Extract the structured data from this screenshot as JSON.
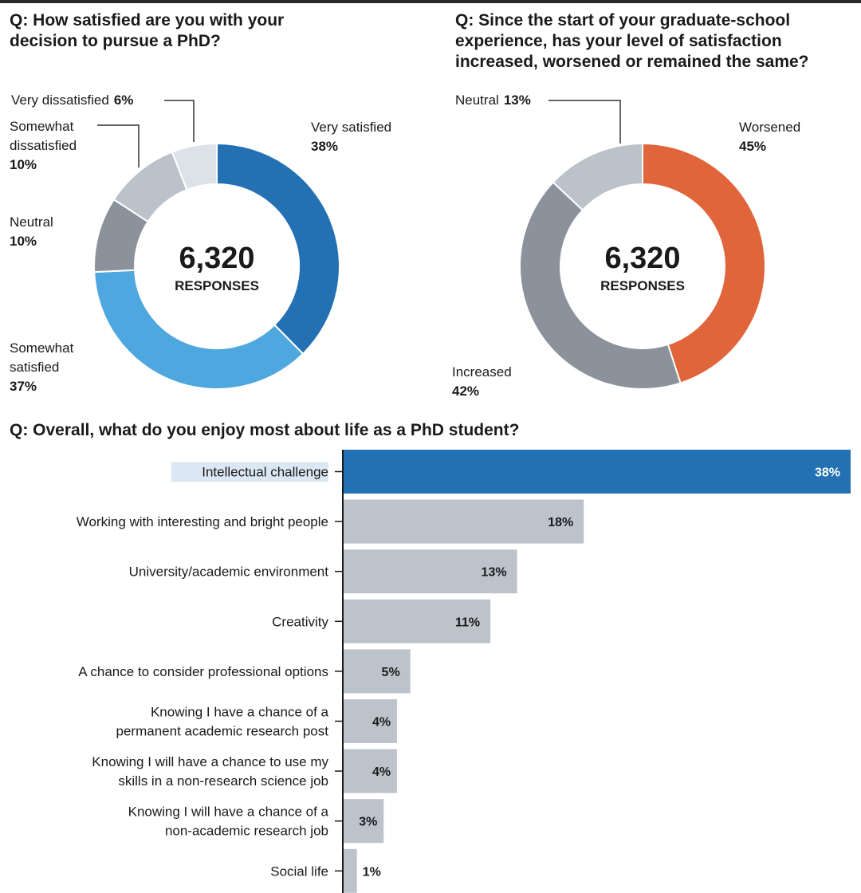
{
  "colors": {
    "very_satisfied": "#2370b3",
    "somewhat_satisfied": "#4ea7de",
    "neutral_dark": "#8b929c",
    "somewhat_dissatisfied": "#bcc2ca",
    "very_dissatisfied": "#dde2e8",
    "worsened": "#e0653b",
    "increased": "#8b929c",
    "neutral_light": "#bcc2ca",
    "bar_highlight": "#2370b3",
    "bar_default": "#bdc3cb",
    "label_highlight_bg": "#dbe7f3",
    "text": "#1a1a1a"
  },
  "chart_data": [
    {
      "type": "pie",
      "title": [
        "Q: How satisfied are you with your",
        "decision to pursue a PhD?"
      ],
      "center": {
        "value": "6,320",
        "label": "RESPONSES"
      },
      "slices": [
        {
          "label": [
            "Very satisfied"
          ],
          "pct_text": "38%",
          "value": 38,
          "color_key": "very_satisfied"
        },
        {
          "label": [
            "Somewhat",
            "satisfied"
          ],
          "pct_text": "37%",
          "value": 37,
          "color_key": "somewhat_satisfied"
        },
        {
          "label": [
            "Neutral"
          ],
          "pct_text": "10%",
          "value": 10,
          "color_key": "neutral_dark"
        },
        {
          "label": [
            "Somewhat",
            "dissatisfied"
          ],
          "pct_text": "10%",
          "value": 10,
          "color_key": "somewhat_dissatisfied"
        },
        {
          "label": [
            "Very dissatisfied"
          ],
          "pct_text": "6%",
          "value": 6,
          "color_key": "very_dissatisfied",
          "inline_pct": true
        }
      ]
    },
    {
      "type": "pie",
      "title": [
        "Q: Since the start of your graduate-school",
        "experience, has your level of satisfaction",
        "increased, worsened or remained the same?"
      ],
      "center": {
        "value": "6,320",
        "label": "RESPONSES"
      },
      "slices": [
        {
          "label": [
            "Worsened"
          ],
          "pct_text": "45%",
          "value": 45,
          "color_key": "worsened"
        },
        {
          "label": [
            "Increased"
          ],
          "pct_text": "42%",
          "value": 42,
          "color_key": "increased"
        },
        {
          "label": [
            "Neutral"
          ],
          "pct_text": "13%",
          "value": 13,
          "color_key": "neutral_light",
          "inline_pct": true
        }
      ]
    },
    {
      "type": "bar",
      "orientation": "horizontal",
      "title": "Q: Overall, what do you enjoy most about life as a PhD student?",
      "categories": [
        [
          "Intellectual challenge"
        ],
        [
          "Working with interesting and bright people"
        ],
        [
          "University/academic environment"
        ],
        [
          "Creativity"
        ],
        [
          "A chance to consider professional options"
        ],
        [
          "Knowing I have a chance of a",
          "permanent academic research post"
        ],
        [
          "Knowing I will have a chance to use my",
          "skills in a non-research science job"
        ],
        [
          "Knowing I will have a chance of a",
          "non-academic research job"
        ],
        [
          "Social life"
        ]
      ],
      "values": [
        38,
        18,
        13,
        11,
        5,
        4,
        4,
        3,
        1
      ],
      "value_labels": [
        "38%",
        "18%",
        "13%",
        "11%",
        "5%",
        "4%",
        "4%",
        "3%",
        "1%"
      ],
      "highlight_index": 0,
      "xlim": [
        0,
        38
      ]
    }
  ]
}
